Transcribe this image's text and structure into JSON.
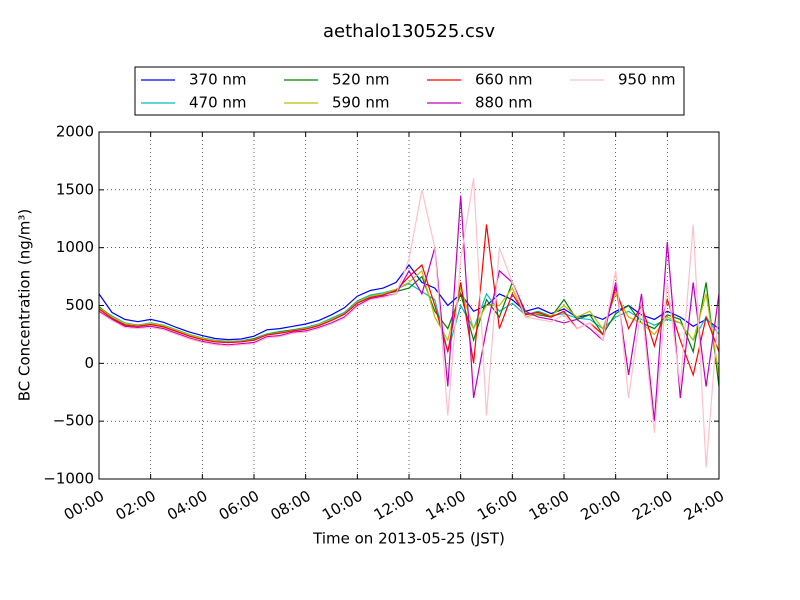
{
  "chart_data": {
    "type": "line",
    "title": "aethalo130525.csv",
    "xlabel": "Time on 2013-05-25 (JST)",
    "ylabel": "BC Concentration (ng/m³)",
    "x": [
      0,
      0.5,
      1,
      1.5,
      2,
      2.5,
      3,
      3.5,
      4,
      4.5,
      5,
      5.5,
      6,
      6.5,
      7,
      7.5,
      8,
      8.5,
      9,
      9.5,
      10,
      10.5,
      11,
      11.5,
      12,
      12.5,
      13,
      13.5,
      14,
      14.5,
      15,
      15.5,
      16,
      16.5,
      17,
      17.5,
      18,
      18.5,
      19,
      19.5,
      20,
      20.5,
      21,
      21.5,
      22,
      22.5,
      23,
      23.5,
      24
    ],
    "series": [
      {
        "name": "370 nm",
        "color": "#0000ff",
        "values": [
          600,
          440,
          380,
          360,
          380,
          355,
          310,
          270,
          240,
          215,
          205,
          210,
          235,
          290,
          300,
          320,
          340,
          370,
          420,
          480,
          580,
          630,
          650,
          700,
          850,
          700,
          650,
          500,
          600,
          450,
          500,
          600,
          550,
          450,
          480,
          430,
          470,
          400,
          420,
          380,
          450,
          500,
          420,
          380,
          450,
          400,
          320,
          380,
          300
        ]
      },
      {
        "name": "470 nm",
        "color": "#00bfbf",
        "values": [
          480,
          410,
          350,
          330,
          350,
          330,
          290,
          250,
          220,
          200,
          190,
          195,
          215,
          255,
          275,
          290,
          310,
          340,
          390,
          440,
          540,
          590,
          610,
          640,
          690,
          620,
          550,
          100,
          500,
          300,
          600,
          450,
          520,
          420,
          450,
          410,
          430,
          390,
          380,
          300,
          400,
          450,
          380,
          330,
          380,
          350,
          200,
          400,
          250
        ]
      },
      {
        "name": "520 nm",
        "color": "#008000",
        "values": [
          490,
          400,
          340,
          330,
          340,
          320,
          280,
          240,
          210,
          190,
          180,
          190,
          210,
          250,
          270,
          290,
          300,
          330,
          380,
          430,
          530,
          580,
          600,
          620,
          650,
          750,
          450,
          300,
          600,
          200,
          550,
          400,
          700,
          430,
          420,
          400,
          550,
          380,
          420,
          250,
          430,
          500,
          350,
          300,
          420,
          380,
          100,
          700,
          -200
        ]
      },
      {
        "name": "590 nm",
        "color": "#bfbf00",
        "values": [
          480,
          400,
          345,
          325,
          345,
          325,
          285,
          245,
          215,
          195,
          185,
          190,
          205,
          250,
          265,
          285,
          300,
          335,
          380,
          430,
          530,
          580,
          600,
          640,
          700,
          800,
          400,
          200,
          650,
          300,
          500,
          500,
          650,
          400,
          430,
          410,
          500,
          400,
          450,
          300,
          600,
          400,
          350,
          250,
          400,
          350,
          200,
          600,
          -100
        ]
      },
      {
        "name": "660 nm",
        "color": "#ff0000",
        "values": [
          470,
          390,
          330,
          320,
          335,
          315,
          275,
          235,
          205,
          185,
          180,
          185,
          200,
          245,
          260,
          280,
          295,
          325,
          370,
          425,
          520,
          570,
          590,
          630,
          750,
          850,
          500,
          100,
          700,
          0,
          1200,
          300,
          600,
          420,
          440,
          400,
          450,
          300,
          350,
          250,
          650,
          300,
          500,
          150,
          550,
          200,
          -100,
          400,
          100
        ]
      },
      {
        "name": "880 nm",
        "color": "#bf00bf",
        "values": [
          450,
          380,
          320,
          310,
          320,
          300,
          260,
          220,
          190,
          170,
          160,
          170,
          180,
          230,
          240,
          270,
          280,
          310,
          350,
          400,
          500,
          560,
          580,
          600,
          800,
          600,
          1000,
          -200,
          1450,
          -300,
          300,
          800,
          700,
          450,
          400,
          380,
          350,
          380,
          300,
          200,
          700,
          -100,
          600,
          -500,
          1050,
          -300,
          700,
          -200,
          600
        ]
      },
      {
        "name": "950 nm",
        "color": "#ffc0cb",
        "values": [
          440,
          370,
          310,
          300,
          310,
          290,
          250,
          210,
          180,
          160,
          150,
          160,
          170,
          220,
          230,
          260,
          270,
          300,
          340,
          390,
          490,
          550,
          570,
          600,
          900,
          1500,
          1000,
          -450,
          900,
          1600,
          -450,
          1000,
          700,
          400,
          380,
          360,
          420,
          300,
          350,
          200,
          800,
          -300,
          500,
          -600,
          700,
          -200,
          1200,
          -900,
          500
        ]
      }
    ],
    "xlim": [
      0,
      24
    ],
    "xticks": [
      {
        "value": 0,
        "label": "00:00"
      },
      {
        "value": 2,
        "label": "02:00"
      },
      {
        "value": 4,
        "label": "04:00"
      },
      {
        "value": 6,
        "label": "06:00"
      },
      {
        "value": 8,
        "label": "08:00"
      },
      {
        "value": 10,
        "label": "10:00"
      },
      {
        "value": 12,
        "label": "12:00"
      },
      {
        "value": 14,
        "label": "14:00"
      },
      {
        "value": 16,
        "label": "16:00"
      },
      {
        "value": 18,
        "label": "18:00"
      },
      {
        "value": 20,
        "label": "20:00"
      },
      {
        "value": 22,
        "label": "22:00"
      },
      {
        "value": 24,
        "label": "24:00"
      }
    ],
    "ylim": [
      -1000,
      2000
    ],
    "yticks": [
      {
        "value": -1000,
        "label": "−1000"
      },
      {
        "value": -500,
        "label": "−500"
      },
      0,
      500,
      1000,
      1500,
      2000
    ],
    "grid": true,
    "legend": "top"
  }
}
